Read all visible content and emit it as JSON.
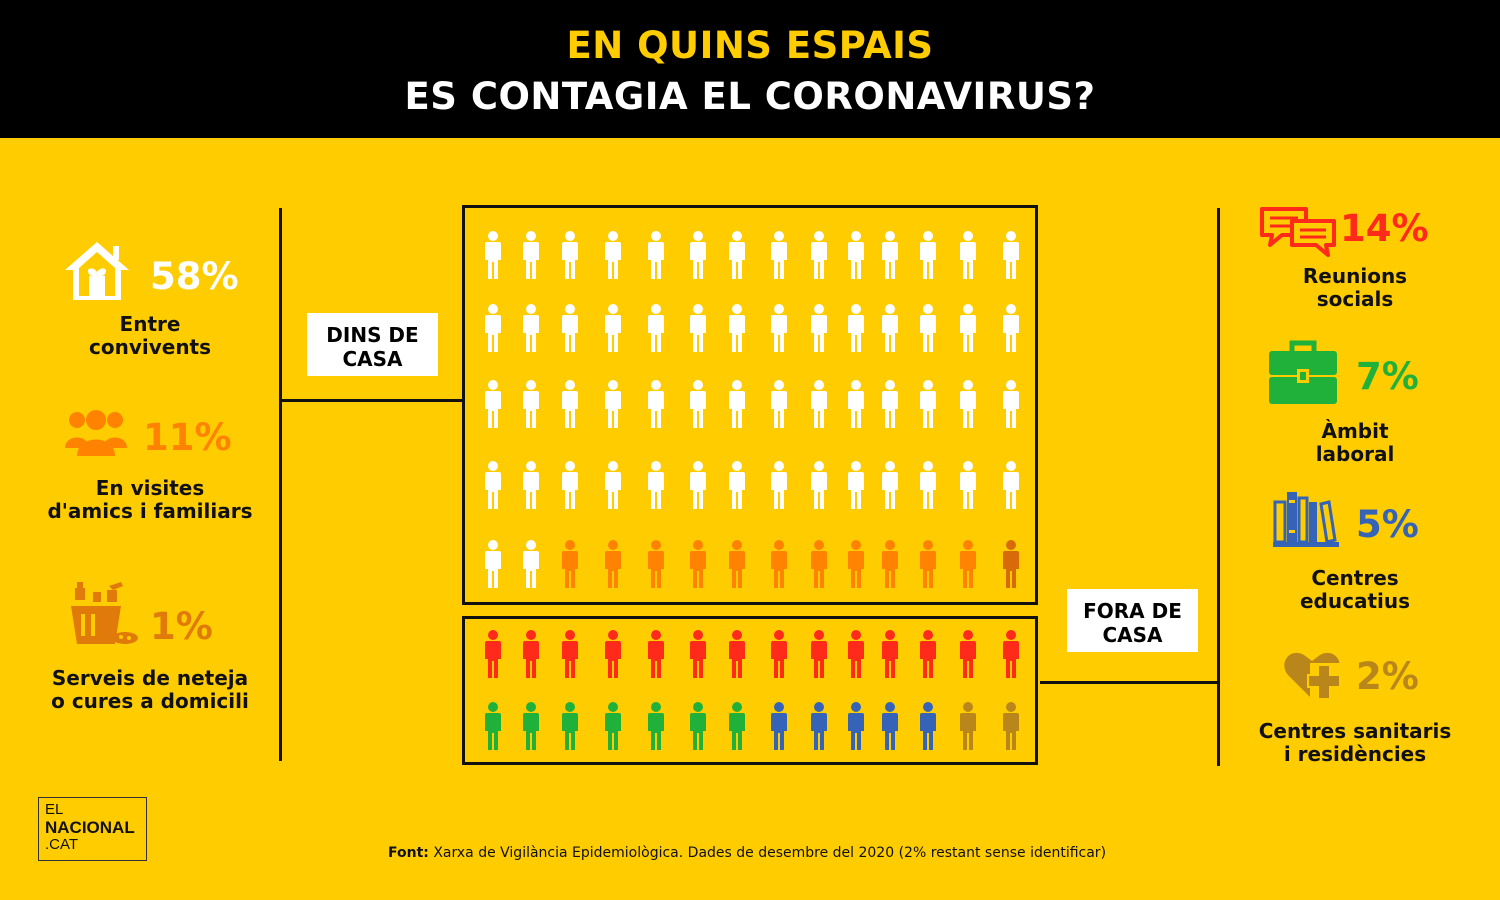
{
  "header": {
    "title_line1": "EN QUINS ESPAIS",
    "title_line2": "ES CONTAGIA EL CORONAVIRUS?"
  },
  "groups": {
    "inside": "DINS DE CASA",
    "outside": "FORA DE CASA"
  },
  "left_categories": [
    {
      "label_line1": "Entre",
      "label_line2": "convivents",
      "percent": "58%",
      "icon": "house-heart-icon",
      "color": "#FFFFFF"
    },
    {
      "label_line1": "En visites",
      "label_line2": "d'amics i familiars",
      "percent": "11%",
      "icon": "group-people-icon",
      "color": "#FF8200"
    },
    {
      "label_line1": "Serveis de neteja",
      "label_line2": "o cures a domicili",
      "percent": "1%",
      "icon": "cleaning-bucket-icon",
      "color": "#E07A0A"
    }
  ],
  "right_categories": [
    {
      "label_line1": "Reunions",
      "label_line2": "socials",
      "percent": "14%",
      "icon": "speech-bubbles-icon",
      "color": "#FF2A1A"
    },
    {
      "label_line1": "Àmbit",
      "label_line2": "laboral",
      "percent": "7%",
      "icon": "briefcase-icon",
      "color": "#1FB13A"
    },
    {
      "label_line1": "Centres",
      "label_line2": "educatius",
      "percent": "5%",
      "icon": "books-icon",
      "color": "#3463B8"
    },
    {
      "label_line1": "Centres sanitaris",
      "label_line2": "i residències",
      "percent": "2%",
      "icon": "health-heart-cross-icon",
      "color": "#B8861B"
    }
  ],
  "source": {
    "label": "Font:",
    "text": "Xarxa de Vigilància Epidemiològica. Dades de desembre del 2020  (2% restant sense identificar)"
  },
  "logo": {
    "line1": "EL",
    "line2": "NACIONAL",
    "line3": ".CAT"
  },
  "chart_data": {
    "type": "table",
    "unit": "%",
    "groups": [
      {
        "name": "DINS DE CASA",
        "categories": [
          "Entre convivents",
          "En visites d'amics i familiars",
          "Serveis de neteja o cures a domicili"
        ],
        "values": [
          58,
          11,
          1
        ],
        "colors": [
          "#FFFFFF",
          "#FF8200",
          "#D96A0A"
        ]
      },
      {
        "name": "FORA DE CASA",
        "categories": [
          "Reunions socials",
          "Àmbit laboral",
          "Centres educatius",
          "Centres sanitaris i residències"
        ],
        "values": [
          14,
          7,
          5,
          2
        ],
        "colors": [
          "#FF2A1A",
          "#1FB13A",
          "#3463B8",
          "#B8861B"
        ]
      }
    ],
    "unidentified": 2,
    "icons_per_row": 14
  }
}
